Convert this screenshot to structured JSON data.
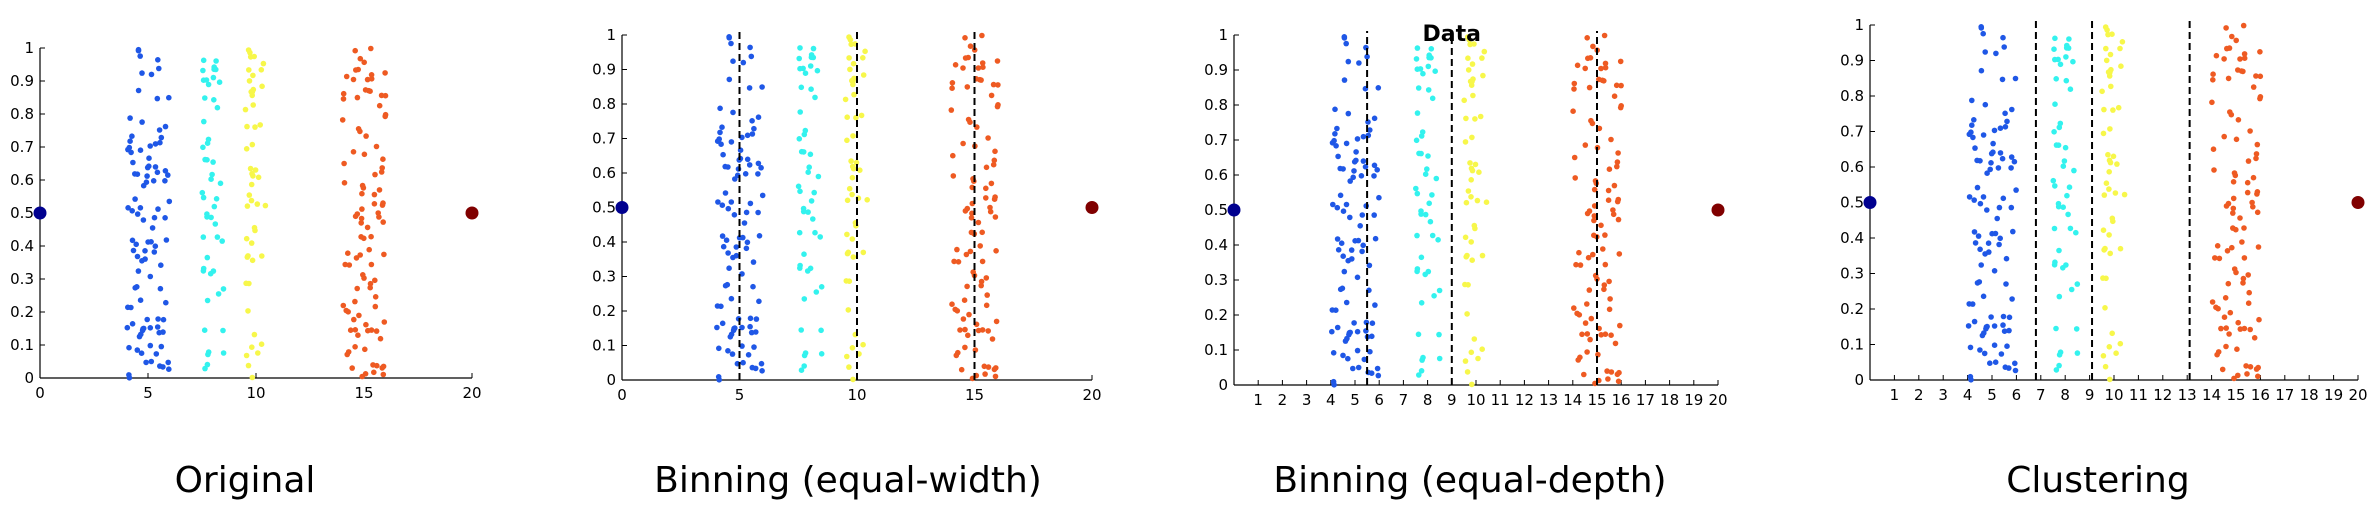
{
  "chart_data": [
    {
      "type": "scatter",
      "title": "",
      "caption": "Original",
      "xlim": [
        0,
        20
      ],
      "ylim": [
        0,
        1
      ],
      "x_ticks": [
        "0",
        "5",
        "10",
        "15",
        "20"
      ],
      "y_ticks": [
        "0",
        "0.1",
        "0.2",
        "0.3",
        "0.4",
        "0.5",
        "0.6",
        "0.7",
        "0.8",
        "0.9",
        "1"
      ],
      "bin_lines": [],
      "series": [
        {
          "color": "#1f57e6",
          "x_range": [
            4,
            6
          ],
          "count": 100,
          "seed": 11
        },
        {
          "color": "#33f2ee",
          "x_range": [
            7.5,
            8.5
          ],
          "count": 50,
          "seed": 23
        },
        {
          "color": "#f7f74a",
          "x_range": [
            9.5,
            10.5
          ],
          "count": 50,
          "seed": 37
        },
        {
          "color": "#ee5a22",
          "x_range": [
            14,
            16
          ],
          "count": 100,
          "seed": 51
        }
      ],
      "endpoints": [
        {
          "x": 0,
          "y": 0.5,
          "color": "#00008f"
        },
        {
          "x": 20,
          "y": 0.5,
          "color": "#800000"
        }
      ]
    },
    {
      "type": "scatter",
      "title": "",
      "caption": "Binning (equal-width)",
      "xlim": [
        0,
        20
      ],
      "ylim": [
        0,
        1
      ],
      "x_ticks": [
        "0",
        "5",
        "10",
        "15",
        "20"
      ],
      "y_ticks": [
        "0",
        "0.1",
        "0.2",
        "0.3",
        "0.4",
        "0.5",
        "0.6",
        "0.7",
        "0.8",
        "0.9",
        "1"
      ],
      "bin_lines": [
        5,
        10,
        15
      ],
      "series": [
        {
          "color": "#1f57e6",
          "x_range": [
            4,
            6
          ],
          "count": 100,
          "seed": 11
        },
        {
          "color": "#33f2ee",
          "x_range": [
            7.5,
            8.5
          ],
          "count": 50,
          "seed": 23
        },
        {
          "color": "#f7f74a",
          "x_range": [
            9.5,
            10.5
          ],
          "count": 50,
          "seed": 37
        },
        {
          "color": "#ee5a22",
          "x_range": [
            14,
            16
          ],
          "count": 100,
          "seed": 51
        }
      ],
      "endpoints": [
        {
          "x": 0,
          "y": 0.5,
          "color": "#00008f"
        },
        {
          "x": 20,
          "y": 0.5,
          "color": "#800000"
        }
      ]
    },
    {
      "type": "scatter",
      "title": "Data",
      "caption": "Binning (equal-depth)",
      "xlim": [
        0,
        20
      ],
      "ylim": [
        0,
        1
      ],
      "x_ticks": [
        "1",
        "2",
        "3",
        "4",
        "5",
        "6",
        "7",
        "8",
        "9",
        "10",
        "11",
        "12",
        "13",
        "14",
        "15",
        "16",
        "17",
        "18",
        "19",
        "20"
      ],
      "y_ticks": [
        "0",
        "0.1",
        "0.2",
        "0.3",
        "0.4",
        "0.5",
        "0.6",
        "0.7",
        "0.8",
        "0.9",
        "1"
      ],
      "bin_lines": [
        5.5,
        9,
        15
      ],
      "series": [
        {
          "color": "#1f57e6",
          "x_range": [
            4,
            6
          ],
          "count": 100,
          "seed": 11
        },
        {
          "color": "#33f2ee",
          "x_range": [
            7.5,
            8.5
          ],
          "count": 50,
          "seed": 23
        },
        {
          "color": "#f7f74a",
          "x_range": [
            9.5,
            10.5
          ],
          "count": 50,
          "seed": 37
        },
        {
          "color": "#ee5a22",
          "x_range": [
            14,
            16
          ],
          "count": 100,
          "seed": 51
        }
      ],
      "endpoints": [
        {
          "x": 0,
          "y": 0.5,
          "color": "#00008f"
        },
        {
          "x": 20,
          "y": 0.5,
          "color": "#800000"
        }
      ]
    },
    {
      "type": "scatter",
      "title": "",
      "caption": "Clustering",
      "xlim": [
        0,
        20
      ],
      "ylim": [
        0,
        1
      ],
      "x_ticks": [
        "1",
        "2",
        "3",
        "4",
        "5",
        "6",
        "7",
        "8",
        "9",
        "10",
        "11",
        "12",
        "13",
        "14",
        "15",
        "16",
        "17",
        "18",
        "19",
        "20"
      ],
      "y_ticks": [
        "0",
        "0.1",
        "0.2",
        "0.3",
        "0.4",
        "0.5",
        "0.6",
        "0.7",
        "0.8",
        "0.9",
        "1"
      ],
      "bin_lines": [
        6.8,
        9.1,
        13.1
      ],
      "series": [
        {
          "color": "#1f57e6",
          "x_range": [
            4,
            6
          ],
          "count": 100,
          "seed": 11
        },
        {
          "color": "#33f2ee",
          "x_range": [
            7.5,
            8.5
          ],
          "count": 50,
          "seed": 23
        },
        {
          "color": "#f7f74a",
          "x_range": [
            9.5,
            10.5
          ],
          "count": 50,
          "seed": 37
        },
        {
          "color": "#ee5a22",
          "x_range": [
            14,
            16
          ],
          "count": 100,
          "seed": 51
        }
      ],
      "endpoints": [
        {
          "x": 0,
          "y": 0.5,
          "color": "#00008f"
        },
        {
          "x": 20,
          "y": 0.5,
          "color": "#800000"
        }
      ]
    }
  ]
}
